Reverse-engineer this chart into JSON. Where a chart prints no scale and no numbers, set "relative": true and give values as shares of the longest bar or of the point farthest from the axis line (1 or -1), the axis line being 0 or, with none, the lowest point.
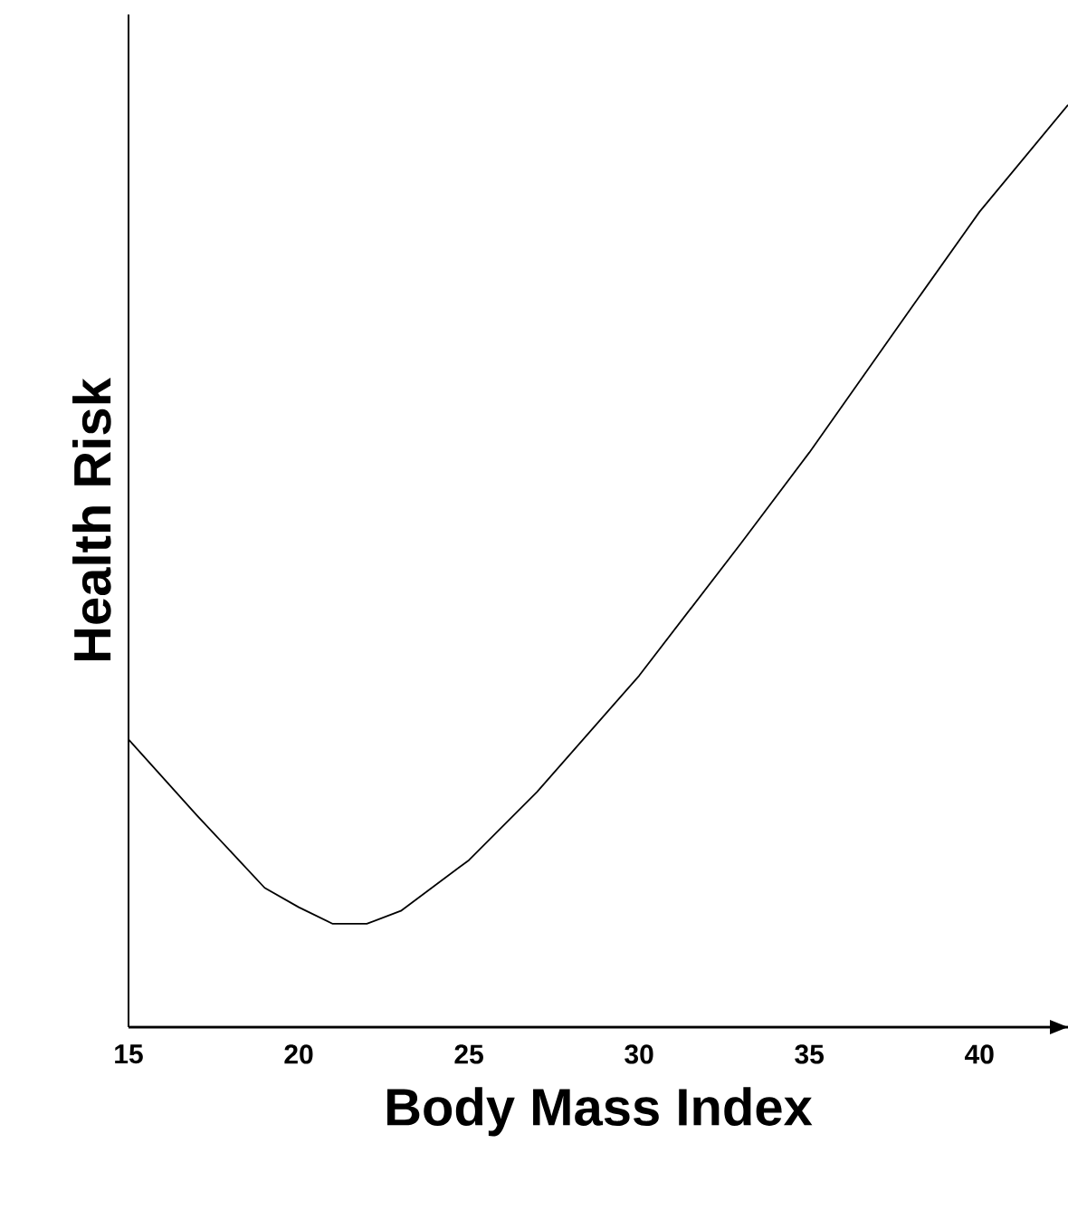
{
  "chart_data": {
    "type": "line",
    "xlabel": "Body Mass Index",
    "ylabel": "Health Risk",
    "relative": true,
    "xlim": [
      15,
      42.6
    ],
    "xticks": [
      15,
      20,
      25,
      30,
      35,
      40
    ],
    "x": [
      15,
      17,
      19,
      20,
      21,
      22,
      23,
      25,
      27,
      30,
      33,
      35,
      38,
      40,
      42.6
    ],
    "values": [
      0.312,
      0.23,
      0.151,
      0.13,
      0.112,
      0.112,
      0.126,
      0.181,
      0.255,
      0.381,
      0.525,
      0.623,
      0.78,
      0.884,
      1.0
    ],
    "color": "#000000",
    "line_style": "solid"
  }
}
